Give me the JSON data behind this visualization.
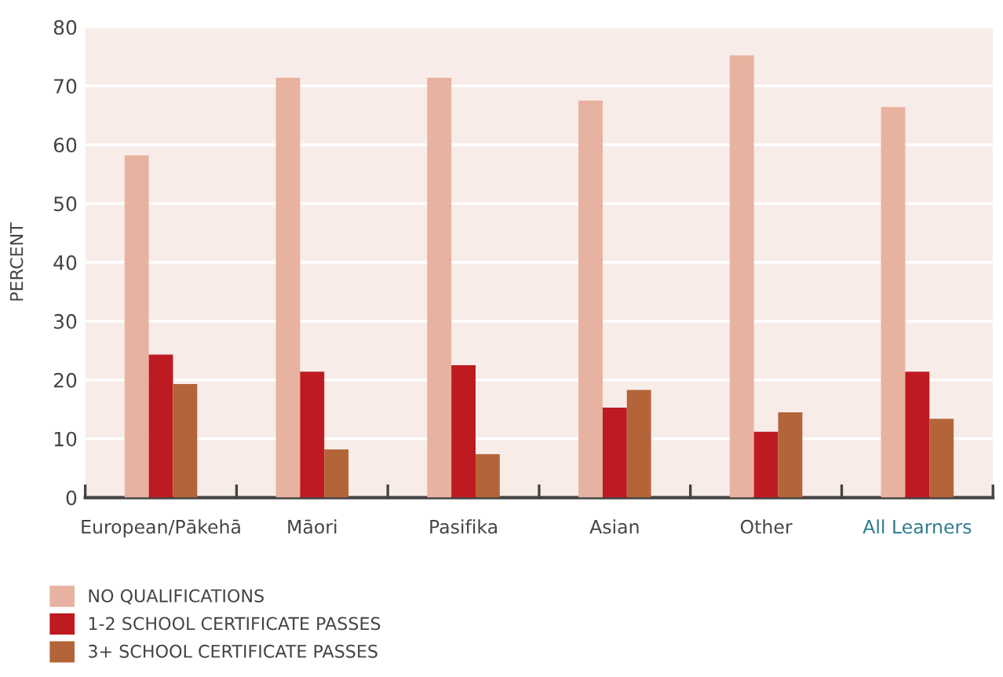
{
  "chart_data": {
    "type": "bar",
    "ylabel": "PERCENT",
    "categories": [
      "European/Pākehā",
      "Māori",
      "Pasifika",
      "Asian",
      "Other",
      "All Learners"
    ],
    "series": [
      {
        "name": "NO QUALIFICATIONS",
        "color": "#e8b2a0",
        "values": [
          58.2,
          71.4,
          71.4,
          67.5,
          75.2,
          66.4
        ]
      },
      {
        "name": "1-2 SCHOOL CERTIFICATE PASSES",
        "color": "#be1a22",
        "values": [
          24.3,
          21.4,
          22.5,
          15.3,
          11.2,
          21.4
        ]
      },
      {
        "name": "3+ SCHOOL CERTIFICATE PASSES",
        "color": "#b36438",
        "values": [
          19.3,
          8.2,
          7.4,
          18.3,
          14.5,
          13.4
        ]
      }
    ],
    "ylim": [
      0,
      80
    ],
    "yticks": [
      0,
      10,
      20,
      30,
      40,
      50,
      60,
      70,
      80
    ],
    "grid": "y",
    "legend": "bottom left"
  }
}
